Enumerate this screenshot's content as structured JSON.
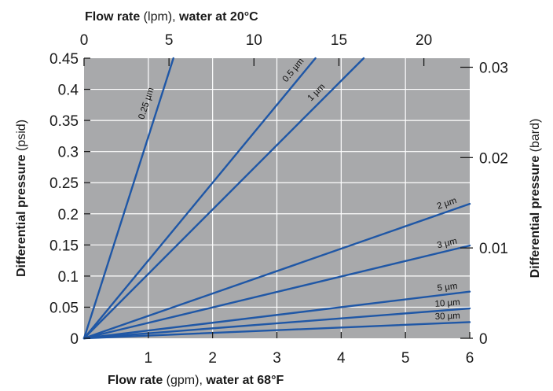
{
  "chart_data": {
    "type": "line",
    "x_bottom": {
      "label_bold_1": "Flow rate",
      "label_plain": " (gpm), ",
      "label_bold_2": "water at 68°F",
      "unit": "gpm",
      "range": [
        0,
        6
      ],
      "ticks": [
        1,
        2,
        3,
        4,
        5,
        6
      ]
    },
    "x_top": {
      "label_bold_1": "Flow rate",
      "label_plain": " (lpm), ",
      "label_bold_2": "water at 20°C",
      "unit": "lpm",
      "range": [
        0,
        22.7
      ],
      "ticks": [
        0,
        5,
        10,
        15,
        20
      ]
    },
    "y_left": {
      "label_bold": "Differential pressure",
      "label_plain": " (psid)",
      "unit": "psid",
      "range": [
        0,
        0.45
      ],
      "ticks": [
        "0",
        "0.05",
        "0.1",
        "0.15",
        "0.2",
        "0.25",
        "0.3",
        "0.35",
        "0.4",
        "0.45"
      ]
    },
    "y_right": {
      "label_bold": "Differential pressure",
      "label_plain": " (bard)",
      "unit": "bard",
      "range": [
        0,
        0.031
      ],
      "ticks": [
        "0",
        "0.01",
        "0.02",
        "0.03"
      ]
    },
    "grid": true,
    "series": [
      {
        "name": "0.25 µm",
        "points": [
          [
            0,
            0
          ],
          [
            1.39,
            0.45
          ]
        ]
      },
      {
        "name": "0.5 µm",
        "points": [
          [
            0,
            0
          ],
          [
            3.6,
            0.45
          ]
        ]
      },
      {
        "name": "1 µm",
        "points": [
          [
            0,
            0
          ],
          [
            4.35,
            0.45
          ]
        ]
      },
      {
        "name": "2 µm",
        "points": [
          [
            0,
            0
          ],
          [
            6.0,
            0.216
          ]
        ]
      },
      {
        "name": "3 µm",
        "points": [
          [
            0,
            0
          ],
          [
            6.0,
            0.149
          ]
        ]
      },
      {
        "name": "5 µm",
        "points": [
          [
            0,
            0
          ],
          [
            6.0,
            0.075
          ]
        ]
      },
      {
        "name": "10 µm",
        "points": [
          [
            0,
            0
          ],
          [
            6.0,
            0.048
          ]
        ]
      },
      {
        "name": "30 µm",
        "points": [
          [
            0,
            0
          ],
          [
            6.0,
            0.026
          ]
        ]
      }
    ],
    "colors": {
      "plot_background": "#a8a9ab",
      "line": "#1f57a6",
      "grid": "#ffffff"
    }
  }
}
